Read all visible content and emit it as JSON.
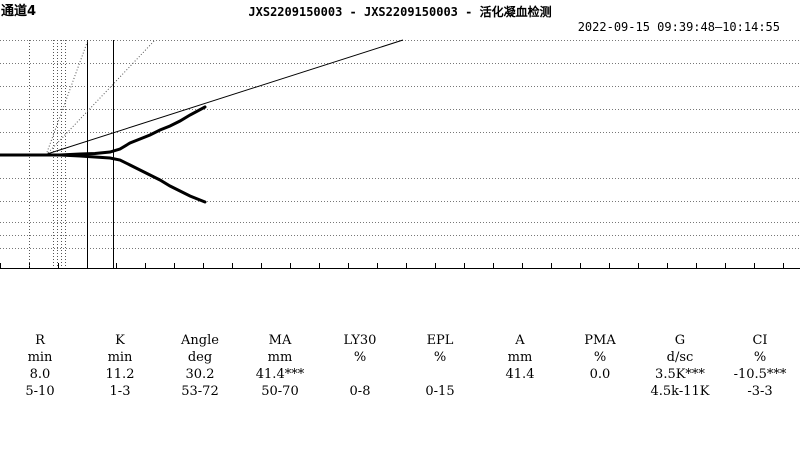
{
  "header": {
    "channel": "通道4",
    "title": "JXS2209150003 - JXS2209150003 - 活化凝血检测",
    "datetime": "2022-09-15 09:39:48—10:14:55"
  },
  "results": {
    "columns": [
      {
        "name": "R",
        "unit": "min",
        "value": "8.0",
        "range": "5-10"
      },
      {
        "name": "K",
        "unit": "min",
        "value": "11.2",
        "range": "1-3"
      },
      {
        "name": "Angle",
        "unit": "deg",
        "value": "30.2",
        "range": "53-72"
      },
      {
        "name": "MA",
        "unit": "mm",
        "value": "41.4***",
        "range": "50-70"
      },
      {
        "name": "LY30",
        "unit": "%",
        "value": "",
        "range": "0-8"
      },
      {
        "name": "EPL",
        "unit": "%",
        "value": "",
        "range": "0-15"
      },
      {
        "name": "A",
        "unit": "mm",
        "value": "41.4",
        "range": ""
      },
      {
        "name": "PMA",
        "unit": "%",
        "value": "0.0",
        "range": ""
      },
      {
        "name": "G",
        "unit": "d/sc",
        "value": "3.5K***",
        "range": "4.5k-11K"
      },
      {
        "name": "CI",
        "unit": "%",
        "value": "-10.5***",
        "range": "-3-3"
      }
    ]
  },
  "colors": {
    "trace": "#000000",
    "grid": "#888888"
  }
}
